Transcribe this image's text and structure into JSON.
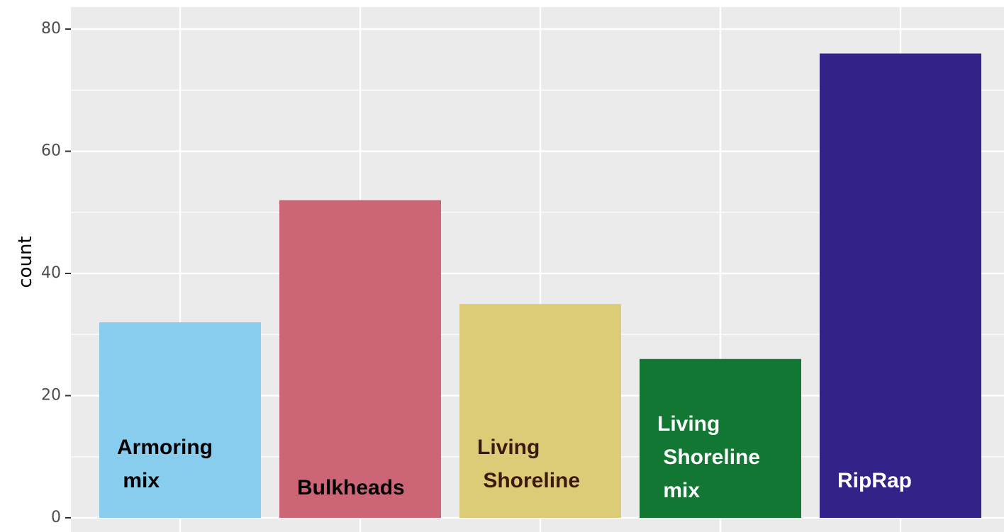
{
  "chart_data": {
    "type": "bar",
    "ylabel": "count",
    "categories": [
      "Armoring mix",
      "Bulkheads",
      "Living Shoreline",
      "Living Shoreline mix",
      "RipRap"
    ],
    "values": [
      32,
      52,
      35,
      26,
      76
    ],
    "colors": [
      "#88ccee",
      "#cc6677",
      "#ddcc77",
      "#117733",
      "#332288"
    ],
    "label_colors": [
      "#000000",
      "#000000",
      "#3b1a0e",
      "#ffffff",
      "#ffffff"
    ],
    "ylim": [
      0,
      83.6
    ],
    "yticks": [
      0,
      20,
      40,
      60,
      80
    ],
    "grid": true
  }
}
